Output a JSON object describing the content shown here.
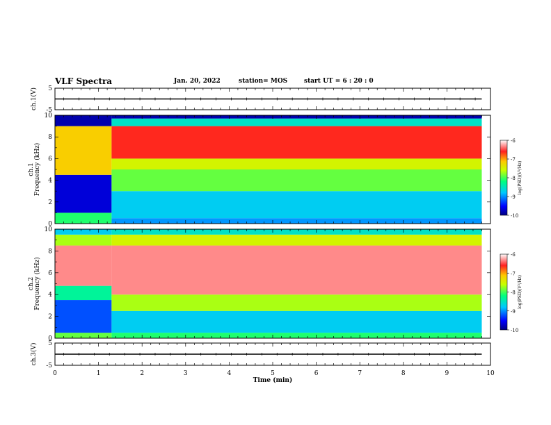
{
  "header": {
    "title": "VLF Spectra",
    "date": "Jan. 20, 2022",
    "station": "station= MOS",
    "start": "start UT =  6 : 20 : 0"
  },
  "colors": {
    "colormap": [
      "#000080",
      "#0000ff",
      "#00c8ff",
      "#00ff80",
      "#c8ff00",
      "#ffc800",
      "#ff2020",
      "#ffffff"
    ],
    "axis": "#000000",
    "trace": "#000000"
  },
  "chart_data": [
    {
      "type": "line",
      "name": "ch1-waveform",
      "ylabel": "ch.1(V)",
      "ylim": [
        -5,
        5
      ],
      "yticks": [
        "5",
        "-5"
      ],
      "xlim": [
        0,
        10
      ],
      "note_values": "flat trace near 0 V over 0–9.8 min",
      "x": [
        0,
        9.8
      ],
      "y": [
        0,
        0
      ]
    },
    {
      "type": "heatmap",
      "name": "ch1-spectrogram",
      "ylabel": "ch.1\nFrequency (kHz)",
      "ylim": [
        0,
        10
      ],
      "yticks": [
        "0",
        "2",
        "4",
        "6",
        "8",
        "10"
      ],
      "xlim": [
        0,
        10
      ],
      "data_end_min": 9.8,
      "colorbar": {
        "label": "log(PSD)(V²/Hz)",
        "range": [
          -10,
          -6
        ],
        "ticks": [
          "-6",
          "-7",
          "-8",
          "-9",
          "-10"
        ]
      },
      "segments": [
        {
          "t0": 0,
          "t1": 1.3,
          "bands": [
            [
              0,
              1,
              -8.2
            ],
            [
              1,
              4.5,
              -9.6
            ],
            [
              4.5,
              9,
              -7.2
            ],
            [
              9,
              10,
              -9.8
            ]
          ]
        },
        {
          "t0": 1.3,
          "t1": 9.8,
          "bands": [
            [
              0,
              0.5,
              -9.0
            ],
            [
              0.5,
              3,
              -8.8
            ],
            [
              3,
              5,
              -8.0
            ],
            [
              5,
              6,
              -7.6
            ],
            [
              6,
              9,
              -6.6
            ],
            [
              9,
              9.7,
              -8.6
            ],
            [
              9.7,
              10,
              -9.8
            ]
          ]
        }
      ]
    },
    {
      "type": "heatmap",
      "name": "ch2-spectrogram",
      "ylabel": "ch.2\nFrequency (kHz)",
      "ylim": [
        0,
        10
      ],
      "yticks": [
        "0",
        "2",
        "4",
        "6",
        "8",
        "10"
      ],
      "xlim": [
        0,
        10
      ],
      "data_end_min": 9.8,
      "colorbar": {
        "label": "log(PSD)(V²/Hz)",
        "range": [
          -10,
          -6
        ],
        "ticks": [
          "-6",
          "-7",
          "-8",
          "-9",
          "-10"
        ]
      },
      "segments": [
        {
          "t0": 0,
          "t1": 1.3,
          "bands": [
            [
              0,
              0.5,
              -8.0
            ],
            [
              0.5,
              3.5,
              -9.2
            ],
            [
              3.5,
              4.8,
              -8.4
            ],
            [
              4.8,
              8.5,
              -6.3
            ],
            [
              8.5,
              9.5,
              -7.8
            ],
            [
              9.5,
              10,
              -8.8
            ]
          ]
        },
        {
          "t0": 1.3,
          "t1": 9.8,
          "bands": [
            [
              0,
              0.5,
              -8.2
            ],
            [
              0.5,
              2.5,
              -8.8
            ],
            [
              2.5,
              4,
              -7.8
            ],
            [
              4,
              8.5,
              -6.3
            ],
            [
              8.5,
              9.5,
              -7.6
            ],
            [
              9.5,
              10,
              -8.6
            ]
          ]
        }
      ]
    },
    {
      "type": "line",
      "name": "ch3-waveform",
      "ylabel": "ch.3(V)",
      "ylim": [
        -5,
        5
      ],
      "yticks": [
        "5",
        "-5"
      ],
      "xlim": [
        0,
        10
      ],
      "xlabel": "Time (min)",
      "xticks": [
        "0",
        "1",
        "2",
        "3",
        "4",
        "5",
        "6",
        "7",
        "8",
        "9",
        "10"
      ],
      "x": [
        0,
        9.8
      ],
      "y": [
        0,
        0
      ]
    }
  ]
}
